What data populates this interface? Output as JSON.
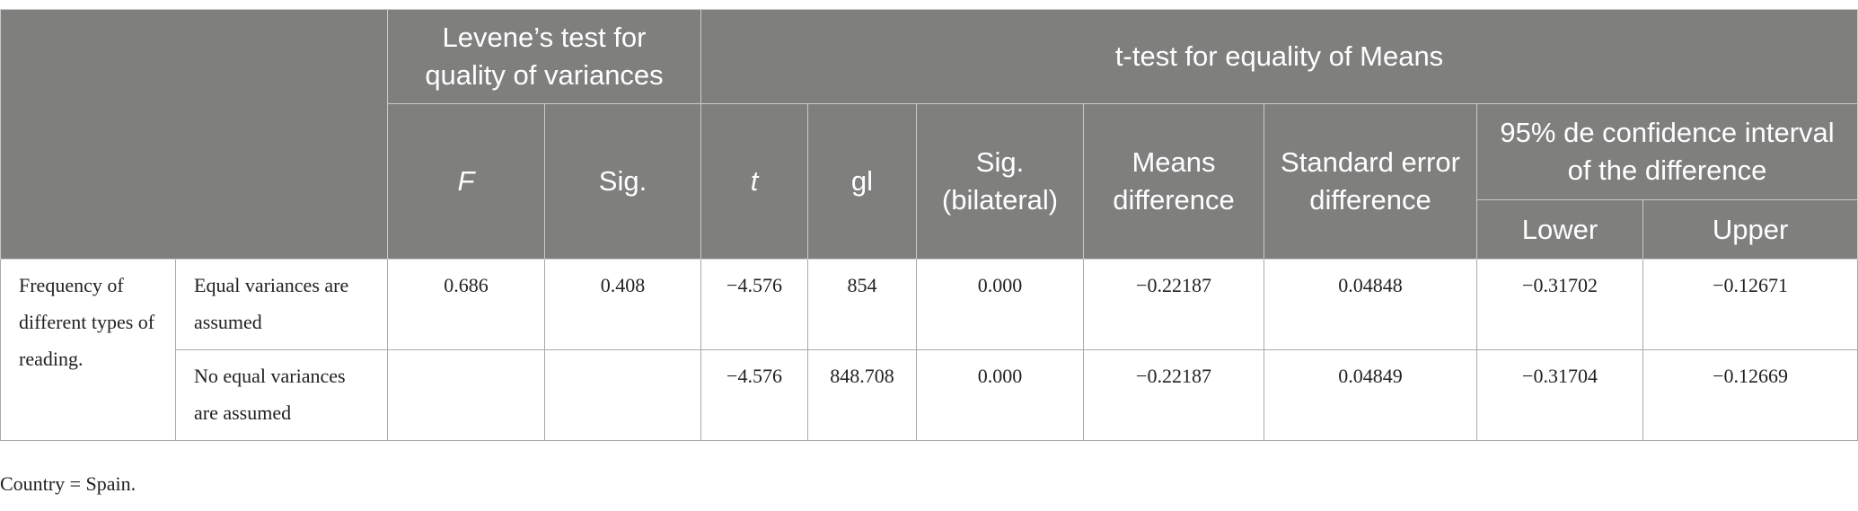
{
  "table": {
    "header": {
      "levene_group": "Levene’s test for quality of variances",
      "ttest_group": "t-test for equality of Means",
      "columns": [
        "F",
        "Sig.",
        "t",
        "gl",
        "Sig. (bilateral)",
        "Means difference",
        "Standard error difference"
      ],
      "ci_group": "95% de confidence interval of the difference",
      "ci_columns": [
        "Lower",
        "Upper"
      ]
    },
    "row_label": "Frequency of different types of reading.",
    "rows": [
      {
        "label": "Equal variances are assumed",
        "cells": [
          "0.686",
          "0.408",
          "−4.576",
          "854",
          "0.000",
          "−0.22187",
          "0.04848",
          "−0.31702",
          "−0.12671"
        ]
      },
      {
        "label": "No equal variances are assumed",
        "cells": [
          "−4.576",
          "848.708",
          "0.000",
          "−0.22187",
          "0.04849",
          "−0.31704",
          "−0.12669"
        ]
      }
    ]
  },
  "footnote": "Country = Spain."
}
